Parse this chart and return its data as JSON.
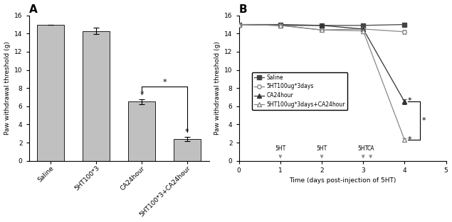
{
  "panel_A": {
    "categories": [
      "Saline",
      "5HT100*3",
      "CA24hour",
      "5HT100*3+CA24hour"
    ],
    "values": [
      15.0,
      14.3,
      6.5,
      2.4
    ],
    "errors": [
      0.0,
      0.35,
      0.25,
      0.25
    ],
    "bar_color": "#c0c0c0",
    "ylabel": "Paw withdrawal threshold (g)",
    "ylim": [
      0,
      16
    ],
    "yticks": [
      0,
      2,
      4,
      6,
      8,
      10,
      12,
      14,
      16
    ],
    "title": "A",
    "bracket_y": 8.2,
    "bracket_x1": 2,
    "bracket_x2": 3
  },
  "panel_B": {
    "title": "B",
    "xlabel": "Time (days post-injection of 5HT)",
    "ylabel": "Paw withdrawal threshold (g)",
    "ylim": [
      0,
      16
    ],
    "yticks": [
      0,
      2,
      4,
      6,
      8,
      10,
      12,
      14,
      16
    ],
    "xlim": [
      0,
      5
    ],
    "xticks": [
      0,
      1,
      2,
      3,
      4,
      5
    ],
    "series": {
      "Saline": {
        "x": [
          0,
          1,
          2,
          3,
          4
        ],
        "y": [
          15.0,
          15.0,
          14.9,
          14.9,
          15.0
        ],
        "yerr": [
          0.15,
          0.15,
          0.2,
          0.2,
          0.15
        ],
        "marker": "s",
        "color": "#444444",
        "markerfacecolor": "#444444",
        "linestyle": "-",
        "label": "Saline"
      },
      "5HT100ug*3days": {
        "x": [
          0,
          1,
          2,
          3,
          4
        ],
        "y": [
          15.0,
          14.9,
          14.4,
          14.5,
          14.2
        ],
        "yerr": [
          0.15,
          0.15,
          0.25,
          0.25,
          0.25
        ],
        "marker": "o",
        "color": "#888888",
        "markerfacecolor": "white",
        "linestyle": "-",
        "label": "5HT100ug*3days"
      },
      "CA24hour": {
        "x": [
          0,
          1,
          2,
          3,
          4
        ],
        "y": [
          15.0,
          14.9,
          14.9,
          14.5,
          6.5
        ],
        "yerr": [
          0.15,
          0.15,
          0.2,
          0.25,
          0.25
        ],
        "marker": "^",
        "color": "#333333",
        "markerfacecolor": "#333333",
        "linestyle": "-",
        "label": "CA24hour"
      },
      "5HT100ug*3days+CA24hour": {
        "x": [
          0,
          1,
          2,
          3,
          4
        ],
        "y": [
          15.0,
          14.9,
          14.4,
          14.3,
          2.3
        ],
        "yerr": [
          0.15,
          0.15,
          0.25,
          0.25,
          0.2
        ],
        "marker": "^",
        "color": "#888888",
        "markerfacecolor": "white",
        "linestyle": "-",
        "label": "5HT100ug*3days+CA24hour"
      }
    }
  }
}
